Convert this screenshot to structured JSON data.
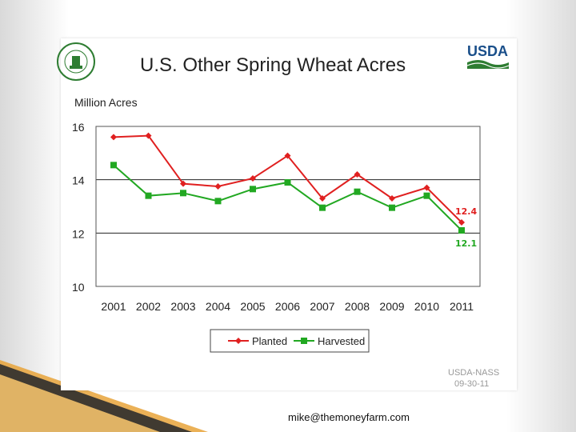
{
  "slide": {
    "title": "U.S. Other Spring Wheat Acres",
    "ylabel": "Million Acres",
    "source_line1": "USDA-NASS",
    "source_line2": "09-30-11",
    "footer_email": "mike@themoneyfarm.com",
    "seal_icon": "agricultural-statistics-seal-icon",
    "logo_icon": "usda-logo-icon",
    "logo_text": "USDA"
  },
  "chart_data": {
    "type": "line",
    "title": "U.S. Other Spring Wheat Acres",
    "ylabel": "Million Acres",
    "xlabel": "",
    "x": [
      "2001",
      "2002",
      "2003",
      "2004",
      "2005",
      "2006",
      "2007",
      "2008",
      "2009",
      "2010",
      "2011"
    ],
    "ylim": [
      10,
      16
    ],
    "yticks": [
      "10",
      "12",
      "14",
      "16"
    ],
    "grid": "horizontal at 12 and 14",
    "legend_position": "bottom-center",
    "series": [
      {
        "name": "Planted",
        "color": "#e02020",
        "marker": "diamond",
        "values": [
          15.6,
          15.65,
          13.85,
          13.75,
          14.05,
          14.9,
          13.3,
          14.2,
          13.3,
          13.7,
          12.4
        ]
      },
      {
        "name": "Harvested",
        "color": "#22a822",
        "marker": "square",
        "values": [
          14.55,
          13.4,
          13.5,
          13.2,
          13.65,
          13.9,
          12.95,
          13.55,
          12.95,
          13.4,
          12.1
        ]
      }
    ],
    "annotations": [
      {
        "text": "12.4",
        "series": "Planted",
        "x": "2011",
        "color": "#e02020"
      },
      {
        "text": "12.1",
        "series": "Harvested",
        "x": "2011",
        "color": "#22a822"
      }
    ]
  }
}
